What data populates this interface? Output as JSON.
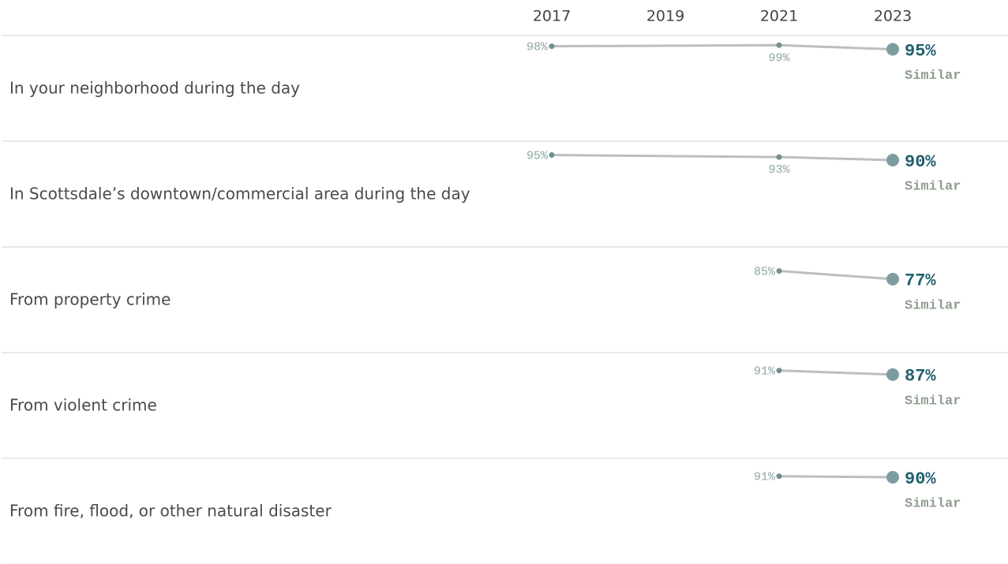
{
  "chart_data": {
    "type": "line",
    "xlim": [
      2016,
      2025
    ],
    "xticks": [
      2017,
      2019,
      2021,
      2023
    ],
    "ylim": [
      0,
      100
    ],
    "line_color": "#bdbdbd",
    "point_color": "#6f8f90",
    "last_point_color": "#7d9ca0",
    "series": [
      {
        "name": "In your neighborhood during the day",
        "x": [
          2017,
          2021,
          2023
        ],
        "values": [
          98,
          99,
          95
        ],
        "value_labels": [
          "98%",
          "99%",
          "95%"
        ],
        "status": "Similar"
      },
      {
        "name": "In Scottsdale’s downtown/commercial area during the day",
        "x": [
          2017,
          2021,
          2023
        ],
        "values": [
          95,
          93,
          90
        ],
        "value_labels": [
          "95%",
          "93%",
          "90%"
        ],
        "status": "Similar"
      },
      {
        "name": "From property crime",
        "x": [
          2021,
          2023
        ],
        "values": [
          85,
          77
        ],
        "value_labels": [
          "85%",
          "77%"
        ],
        "status": "Similar"
      },
      {
        "name": "From violent crime",
        "x": [
          2021,
          2023
        ],
        "values": [
          91,
          87
        ],
        "value_labels": [
          "91%",
          "87%"
        ],
        "status": "Similar"
      },
      {
        "name": "From fire, flood, or other natural disaster",
        "x": [
          2021,
          2023
        ],
        "values": [
          91,
          90
        ],
        "value_labels": [
          "91%",
          "90%"
        ],
        "status": "Similar"
      }
    ]
  }
}
